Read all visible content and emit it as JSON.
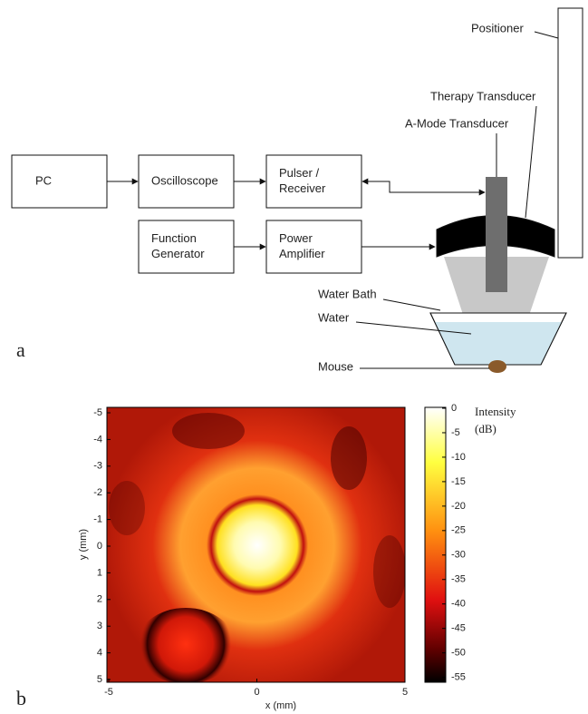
{
  "diagram": {
    "panel_label": "a",
    "boxes": [
      {
        "lines": [
          "PC"
        ]
      },
      {
        "lines": [
          "Oscilloscope"
        ]
      },
      {
        "lines": [
          "Pulser /",
          "Receiver"
        ]
      },
      {
        "lines": [
          "Function",
          "Generator"
        ]
      },
      {
        "lines": [
          "Power",
          "Amplifier"
        ]
      }
    ],
    "labels": [
      "Positioner",
      "Therapy Transducer",
      "A-Mode Transducer",
      "Water Bath",
      "Water",
      "Mouse"
    ]
  },
  "chart_data": {
    "type": "heatmap",
    "panel_label": "b",
    "xlabel": "x (mm)",
    "ylabel": "y (mm)",
    "xlim": [
      -5,
      5
    ],
    "xticks": [
      -5,
      0,
      5
    ],
    "ylim": [
      -5,
      5
    ],
    "yticks": [
      -5,
      -4,
      -3,
      -2,
      -1,
      0,
      1,
      2,
      3,
      4,
      5
    ],
    "colorbar": {
      "label": [
        "Intensity",
        "(dB)"
      ],
      "lim": [
        0,
        -56
      ],
      "ticks": [
        0,
        -5,
        -10,
        -15,
        -20,
        -25,
        -30,
        -35,
        -40,
        -45,
        -50,
        -55
      ]
    }
  }
}
